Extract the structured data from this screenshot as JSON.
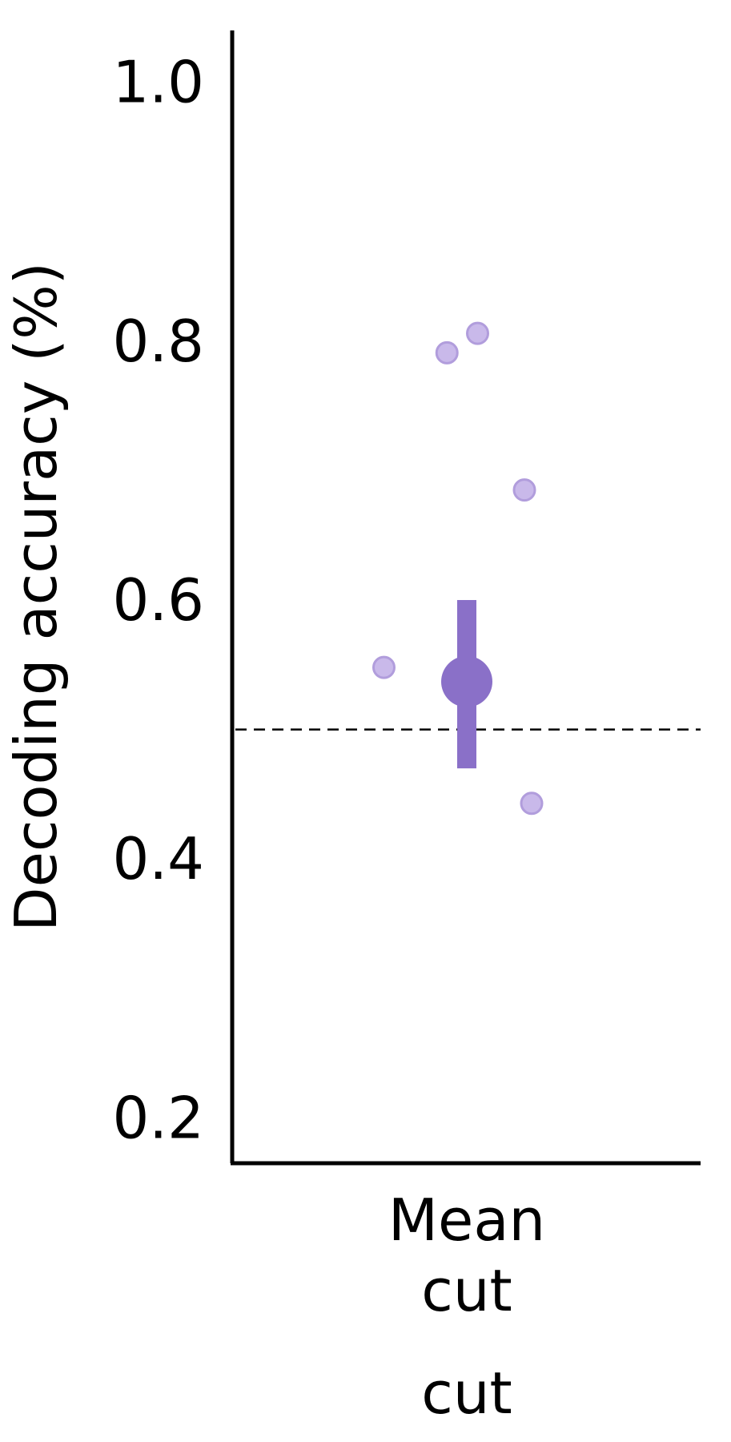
{
  "chart_data": {
    "type": "scatter",
    "title": "",
    "ylabel": "Decoding accuracy (%)",
    "xlabel": "",
    "categories": [
      "Mean\ncut"
    ],
    "x_label_lines": [
      "Mean",
      "cut"
    ],
    "extra_label": "cut",
    "yticks": [
      0.2,
      0.4,
      0.6,
      0.8,
      1.0
    ],
    "ytick_labels": [
      "0.2",
      "0.4",
      "0.6",
      "0.8",
      "1.0"
    ],
    "ylim": [
      0.165,
      1.04
    ],
    "chance_level": 0.5,
    "grid": false,
    "mean": {
      "value": 0.537,
      "ci": [
        0.47,
        0.6
      ]
    },
    "points": [
      {
        "jitter": -0.46,
        "value": 0.548
      },
      {
        "jitter": -0.11,
        "value": 0.791
      },
      {
        "jitter": 0.06,
        "value": 0.806
      },
      {
        "jitter": 0.32,
        "value": 0.685
      },
      {
        "jitter": 0.36,
        "value": 0.443
      }
    ],
    "colors": {
      "mean": "#8a70c8",
      "point_fill": "#c9b9ea",
      "point_stroke": "#b19ddc",
      "axis": "#000000"
    }
  }
}
